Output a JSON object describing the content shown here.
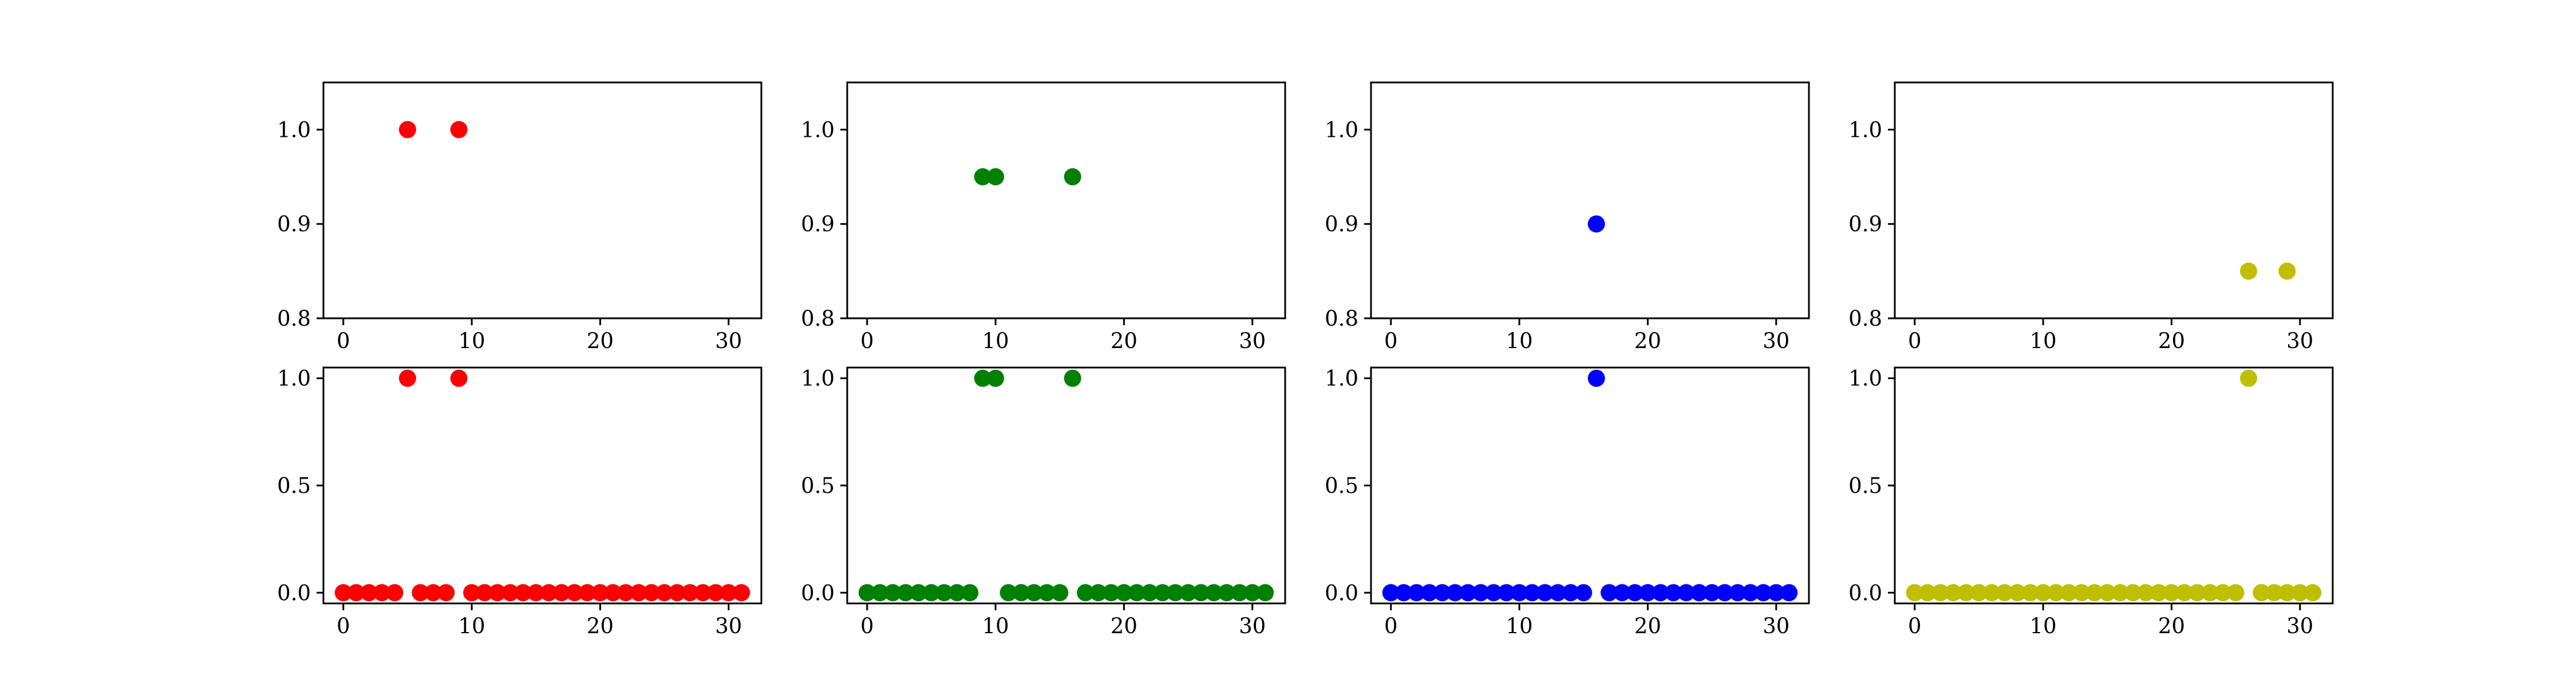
{
  "chart_data": [
    {
      "type": "scatter",
      "row": 1,
      "col": 1,
      "color": "#ff0000",
      "xlim": [
        -1.55,
        32.55
      ],
      "ylim": [
        0.8,
        1.05
      ],
      "xticks": [
        0,
        10,
        20,
        30
      ],
      "yticks": [
        0.8,
        0.9,
        1.0
      ],
      "ytick_labels": [
        "0.8",
        "0.9",
        "1.0"
      ],
      "x": [
        5,
        9
      ],
      "y": [
        1.0,
        1.0
      ]
    },
    {
      "type": "scatter",
      "row": 1,
      "col": 2,
      "color": "#008000",
      "xlim": [
        -1.55,
        32.55
      ],
      "ylim": [
        0.8,
        1.05
      ],
      "xticks": [
        0,
        10,
        20,
        30
      ],
      "yticks": [
        0.8,
        0.9,
        1.0
      ],
      "ytick_labels": [
        "0.8",
        "0.9",
        "1.0"
      ],
      "x": [
        9,
        10,
        16
      ],
      "y": [
        0.95,
        0.95,
        0.95
      ]
    },
    {
      "type": "scatter",
      "row": 1,
      "col": 3,
      "color": "#0000ff",
      "xlim": [
        -1.55,
        32.55
      ],
      "ylim": [
        0.8,
        1.05
      ],
      "xticks": [
        0,
        10,
        20,
        30
      ],
      "yticks": [
        0.8,
        0.9,
        1.0
      ],
      "ytick_labels": [
        "0.8",
        "0.9",
        "1.0"
      ],
      "x": [
        16
      ],
      "y": [
        0.9
      ]
    },
    {
      "type": "scatter",
      "row": 1,
      "col": 4,
      "color": "#bfbf00",
      "xlim": [
        -1.55,
        32.55
      ],
      "ylim": [
        0.8,
        1.05
      ],
      "xticks": [
        0,
        10,
        20,
        30
      ],
      "yticks": [
        0.8,
        0.9,
        1.0
      ],
      "ytick_labels": [
        "0.8",
        "0.9",
        "1.0"
      ],
      "x": [
        26,
        29
      ],
      "y": [
        0.85,
        0.85
      ]
    },
    {
      "type": "scatter",
      "row": 2,
      "col": 1,
      "color": "#ff0000",
      "xlim": [
        -1.55,
        32.55
      ],
      "ylim": [
        -0.05,
        1.05
      ],
      "xticks": [
        0,
        10,
        20,
        30
      ],
      "yticks": [
        0.0,
        0.5,
        1.0
      ],
      "ytick_labels": [
        "0.0",
        "0.5",
        "1.0"
      ],
      "x": [
        0,
        1,
        2,
        3,
        4,
        5,
        6,
        7,
        8,
        9,
        10,
        11,
        12,
        13,
        14,
        15,
        16,
        17,
        18,
        19,
        20,
        21,
        22,
        23,
        24,
        25,
        26,
        27,
        28,
        29,
        30,
        31
      ],
      "y": [
        0,
        0,
        0,
        0,
        0,
        1,
        0,
        0,
        0,
        1,
        0,
        0,
        0,
        0,
        0,
        0,
        0,
        0,
        0,
        0,
        0,
        0,
        0,
        0,
        0,
        0,
        0,
        0,
        0,
        0,
        0,
        0
      ]
    },
    {
      "type": "scatter",
      "row": 2,
      "col": 2,
      "color": "#008000",
      "xlim": [
        -1.55,
        32.55
      ],
      "ylim": [
        -0.05,
        1.05
      ],
      "xticks": [
        0,
        10,
        20,
        30
      ],
      "yticks": [
        0.0,
        0.5,
        1.0
      ],
      "ytick_labels": [
        "0.0",
        "0.5",
        "1.0"
      ],
      "x": [
        0,
        1,
        2,
        3,
        4,
        5,
        6,
        7,
        8,
        9,
        10,
        11,
        12,
        13,
        14,
        15,
        16,
        17,
        18,
        19,
        20,
        21,
        22,
        23,
        24,
        25,
        26,
        27,
        28,
        29,
        30,
        31
      ],
      "y": [
        0,
        0,
        0,
        0,
        0,
        0,
        0,
        0,
        0,
        1,
        1,
        0,
        0,
        0,
        0,
        0,
        1,
        0,
        0,
        0,
        0,
        0,
        0,
        0,
        0,
        0,
        0,
        0,
        0,
        0,
        0,
        0
      ]
    },
    {
      "type": "scatter",
      "row": 2,
      "col": 3,
      "color": "#0000ff",
      "xlim": [
        -1.55,
        32.55
      ],
      "ylim": [
        -0.05,
        1.05
      ],
      "xticks": [
        0,
        10,
        20,
        30
      ],
      "yticks": [
        0.0,
        0.5,
        1.0
      ],
      "ytick_labels": [
        "0.0",
        "0.5",
        "1.0"
      ],
      "x": [
        0,
        1,
        2,
        3,
        4,
        5,
        6,
        7,
        8,
        9,
        10,
        11,
        12,
        13,
        14,
        15,
        16,
        17,
        18,
        19,
        20,
        21,
        22,
        23,
        24,
        25,
        26,
        27,
        28,
        29,
        30,
        31
      ],
      "y": [
        0,
        0,
        0,
        0,
        0,
        0,
        0,
        0,
        0,
        0,
        0,
        0,
        0,
        0,
        0,
        0,
        1,
        0,
        0,
        0,
        0,
        0,
        0,
        0,
        0,
        0,
        0,
        0,
        0,
        0,
        0,
        0
      ]
    },
    {
      "type": "scatter",
      "row": 2,
      "col": 4,
      "color": "#bfbf00",
      "xlim": [
        -1.55,
        32.55
      ],
      "ylim": [
        -0.05,
        1.05
      ],
      "xticks": [
        0,
        10,
        20,
        30
      ],
      "yticks": [
        0.0,
        0.5,
        1.0
      ],
      "ytick_labels": [
        "0.0",
        "0.5",
        "1.0"
      ],
      "x": [
        0,
        1,
        2,
        3,
        4,
        5,
        6,
        7,
        8,
        9,
        10,
        11,
        12,
        13,
        14,
        15,
        16,
        17,
        18,
        19,
        20,
        21,
        22,
        23,
        24,
        25,
        26,
        27,
        28,
        29,
        30,
        31
      ],
      "y": [
        0,
        0,
        0,
        0,
        0,
        0,
        0,
        0,
        0,
        0,
        0,
        0,
        0,
        0,
        0,
        0,
        0,
        0,
        0,
        0,
        0,
        0,
        0,
        0,
        0,
        0,
        1,
        0,
        0,
        0,
        0,
        0
      ]
    }
  ]
}
